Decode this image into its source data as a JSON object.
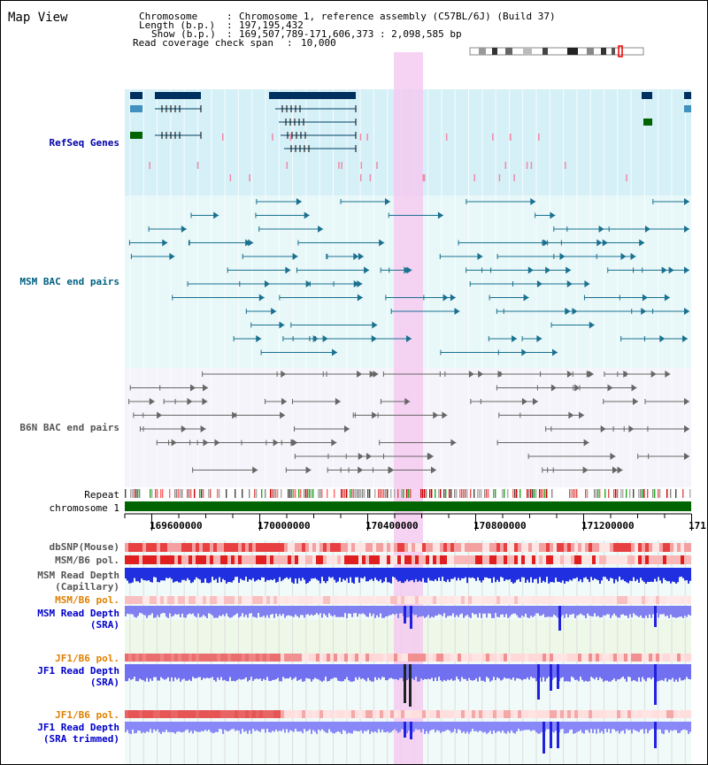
{
  "title": "Map View",
  "info": {
    "chromosome_label": "Chromosome",
    "chromosome_value": "Chromosome 1, reference assembly (C57BL/6J) (Build 37)",
    "length_label": "Length (b.p.)",
    "length_value": "197,195,432",
    "show_label": "Show (b.p.)",
    "show_value": "169,507,789-171,606,373 : 2,098,585 bp",
    "coverage_label": "Read coverage check span",
    "coverage_value": "10,000"
  },
  "tracks": {
    "refseq": "RefSeq Genes",
    "msm_bac": "MSM BAC end pairs",
    "b6n_bac": "B6N BAC end pairs",
    "repeat": "Repeat",
    "chromosome": "chromosome 1",
    "dbsnp": "dbSNP(Mouse)",
    "msm_b6_pol_1": "MSM/B6 pol.",
    "msm_depth_cap_1": "MSM Read Depth",
    "msm_depth_cap_2": "(Capillary)",
    "msm_b6_pol_2": "MSM/B6 pol.",
    "msm_depth_sra_1": "MSM Read Depth",
    "msm_depth_sra_2": "(SRA)",
    "jf1_b6_pol_1": "JF1/B6 pol.",
    "jf1_depth_sra_1": "JF1 Read Depth",
    "jf1_depth_sra_2": "(SRA)",
    "jf1_b6_pol_2": "JF1/B6 pol.",
    "jf1_depth_trim_1": "JF1 Read Depth",
    "jf1_depth_trim_2": "(SRA trimmed)"
  },
  "axis_ticks": [
    "169600000",
    "170000000",
    "170400000",
    "170800000",
    "171200000",
    "171"
  ],
  "colors": {
    "refseq_label": "#0000aa",
    "msm_label": "#006080",
    "b6n_label": "#555555",
    "pol_label": "#e08000",
    "highlight": "#f5c8f0",
    "chromosome_bar": "#006400"
  }
}
